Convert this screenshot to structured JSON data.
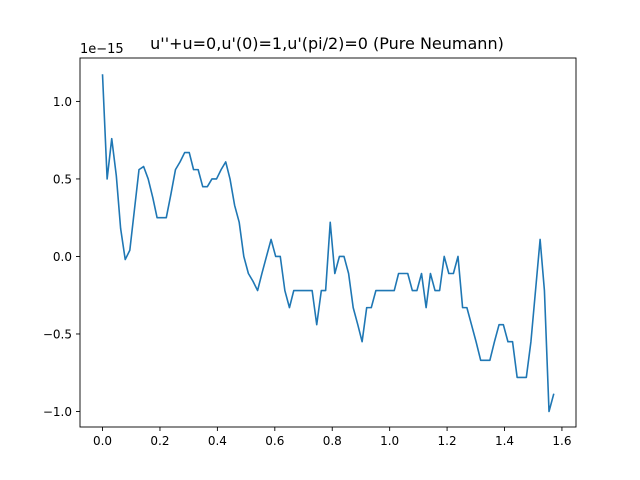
{
  "chart_data": {
    "type": "line",
    "title": "u''+u=0,u'(0)=1,u'(pi/2)=0 (Pure Neumann)",
    "xlabel": "",
    "ylabel": "",
    "y_offset_label": "1e−15",
    "xlim": [
      -0.0785,
      1.649
    ],
    "ylim": [
      -1.1,
      1.28
    ],
    "grid": false,
    "line_color": "#1f77b4",
    "xticks": [
      0.0,
      0.2,
      0.4,
      0.6,
      0.8,
      1.0,
      1.2,
      1.4,
      1.6
    ],
    "xtick_labels": [
      "0.0",
      "0.2",
      "0.4",
      "0.6",
      "0.8",
      "1.0",
      "1.2",
      "1.4",
      "1.6"
    ],
    "yticks": [
      -1.0,
      -0.5,
      0.0,
      0.5,
      1.0
    ],
    "ytick_labels": [
      "−1.0",
      "−0.5",
      "0.0",
      "0.5",
      "1.0"
    ],
    "series": [
      {
        "x": [
          0.0,
          0.016,
          0.032,
          0.048,
          0.063,
          0.079,
          0.095,
          0.111,
          0.127,
          0.143,
          0.159,
          0.175,
          0.19,
          0.206,
          0.222,
          0.238,
          0.254,
          0.27,
          0.286,
          0.302,
          0.317,
          0.333,
          0.349,
          0.365,
          0.381,
          0.397,
          0.413,
          0.429,
          0.444,
          0.46,
          0.476,
          0.492,
          0.508,
          0.524,
          0.54,
          0.555,
          0.571,
          0.587,
          0.603,
          0.619,
          0.635,
          0.651,
          0.666,
          0.682,
          0.698,
          0.714,
          0.73,
          0.746,
          0.762,
          0.777,
          0.793,
          0.809,
          0.825,
          0.841,
          0.857,
          0.873,
          0.889,
          0.904,
          0.92,
          0.936,
          0.952,
          0.968,
          0.984,
          1.0,
          1.016,
          1.031,
          1.047,
          1.063,
          1.079,
          1.095,
          1.111,
          1.127,
          1.142,
          1.158,
          1.174,
          1.19,
          1.206,
          1.222,
          1.238,
          1.254,
          1.269,
          1.285,
          1.301,
          1.317,
          1.333,
          1.349,
          1.365,
          1.381,
          1.396,
          1.412,
          1.428,
          1.444,
          1.46,
          1.476,
          1.492,
          1.508,
          1.524,
          1.539,
          1.555,
          1.571
        ],
        "y": [
          1.17,
          0.5,
          0.76,
          0.52,
          0.18,
          -0.02,
          0.04,
          0.3,
          0.56,
          0.58,
          0.5,
          0.38,
          0.25,
          0.25,
          0.25,
          0.4,
          0.56,
          0.61,
          0.67,
          0.67,
          0.56,
          0.56,
          0.45,
          0.45,
          0.5,
          0.5,
          0.56,
          0.61,
          0.5,
          0.33,
          0.22,
          0.0,
          -0.11,
          -0.16,
          -0.22,
          -0.11,
          0.0,
          0.11,
          0.0,
          0.0,
          -0.22,
          -0.33,
          -0.22,
          -0.22,
          -0.22,
          -0.22,
          -0.22,
          -0.44,
          -0.22,
          -0.22,
          0.22,
          -0.11,
          0.0,
          0.0,
          -0.11,
          -0.33,
          -0.44,
          -0.55,
          -0.33,
          -0.33,
          -0.22,
          -0.22,
          -0.22,
          -0.22,
          -0.22,
          -0.11,
          -0.11,
          -0.11,
          -0.22,
          -0.22,
          -0.11,
          -0.33,
          -0.11,
          -0.22,
          -0.22,
          0.0,
          -0.11,
          -0.11,
          0.0,
          -0.33,
          -0.33,
          -0.44,
          -0.55,
          -0.67,
          -0.67,
          -0.67,
          -0.55,
          -0.44,
          -0.44,
          -0.55,
          -0.55,
          -0.78,
          -0.78,
          -0.78,
          -0.55,
          -0.22,
          0.11,
          -0.22,
          -1.0,
          -0.89
        ]
      }
    ]
  }
}
